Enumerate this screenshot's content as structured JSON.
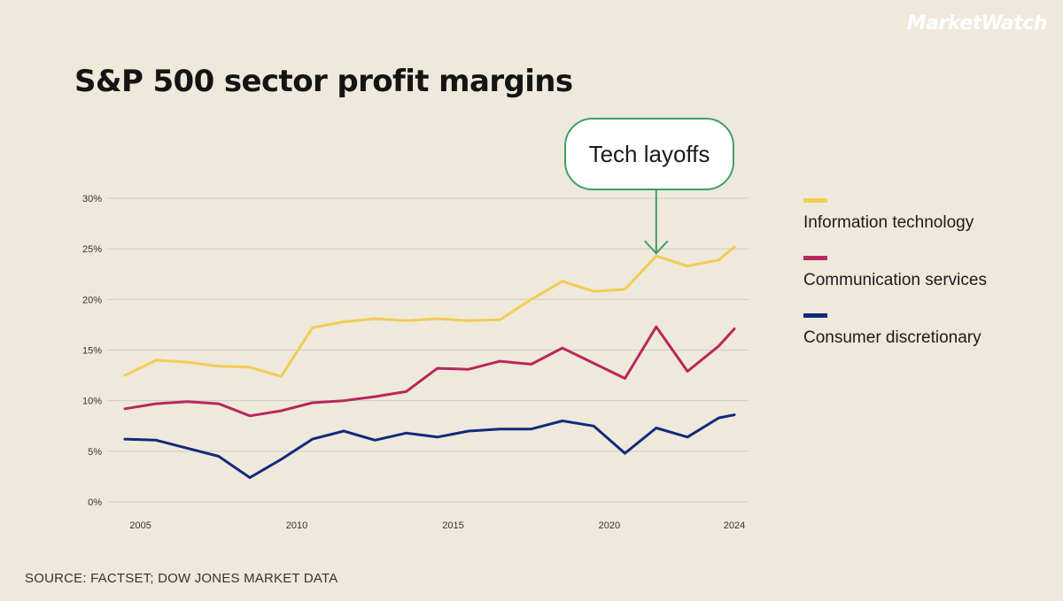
{
  "brand": "MarketWatch",
  "annotation": {
    "text": "Tech layoffs"
  },
  "source": "SOURCE: FACTSET; DOW JONES MARKET DATA",
  "colors": {
    "info_tech": "#f2cd55",
    "comm_services": "#b8275d",
    "consumer_disc": "#122a7c",
    "annotation": "#3f9e67",
    "grid": "#cccccc"
  },
  "chart_data": {
    "type": "line",
    "title": "S&P 500 sector profit margins",
    "xlabel": "",
    "ylabel": "",
    "xlim": [
      2004.5,
      2024
    ],
    "ylim": [
      0,
      30
    ],
    "yticks": [
      0,
      5,
      10,
      15,
      20,
      25,
      30
    ],
    "ytick_labels": [
      "0%",
      "5%",
      "10%",
      "15%",
      "20%",
      "25%",
      "30%"
    ],
    "xticks": [
      2005,
      2010,
      2015,
      2020,
      2024
    ],
    "xtick_labels": [
      "2005",
      "2010",
      "2015",
      "2020",
      "2024"
    ],
    "grid": true,
    "legend_position": "right",
    "x": [
      2004.5,
      2005.5,
      2006.5,
      2007.5,
      2008.5,
      2009.5,
      2010.5,
      2011.5,
      2012.5,
      2013.5,
      2014.5,
      2015.5,
      2016.5,
      2017.5,
      2018.5,
      2019.5,
      2020.5,
      2021.5,
      2022.5,
      2023.5,
      2024
    ],
    "series": [
      {
        "name": "Information technology",
        "color_key": "info_tech",
        "values": [
          12.5,
          14.0,
          13.8,
          13.4,
          13.3,
          12.4,
          17.2,
          17.8,
          18.1,
          17.9,
          18.1,
          17.9,
          18.0,
          20.0,
          21.8,
          20.8,
          21.0,
          24.3,
          23.3,
          23.9,
          25.2
        ]
      },
      {
        "name": "Communication services",
        "color_key": "comm_services",
        "values": [
          9.2,
          9.7,
          9.9,
          9.7,
          8.5,
          9.0,
          9.8,
          10.0,
          10.4,
          10.9,
          13.2,
          13.1,
          13.9,
          13.6,
          15.2,
          13.7,
          12.2,
          17.3,
          12.9,
          15.4,
          17.1
        ]
      },
      {
        "name": "Consumer discretionary",
        "color_key": "consumer_disc",
        "values": [
          6.2,
          6.1,
          5.3,
          4.5,
          2.4,
          4.2,
          6.2,
          7.0,
          6.1,
          6.8,
          6.4,
          7.0,
          7.2,
          7.2,
          8.0,
          7.5,
          4.8,
          7.3,
          6.4,
          8.3,
          8.6
        ]
      }
    ],
    "annotations": [
      {
        "text": "Tech layoffs",
        "x": 2021.5,
        "y": 24.3
      }
    ]
  }
}
